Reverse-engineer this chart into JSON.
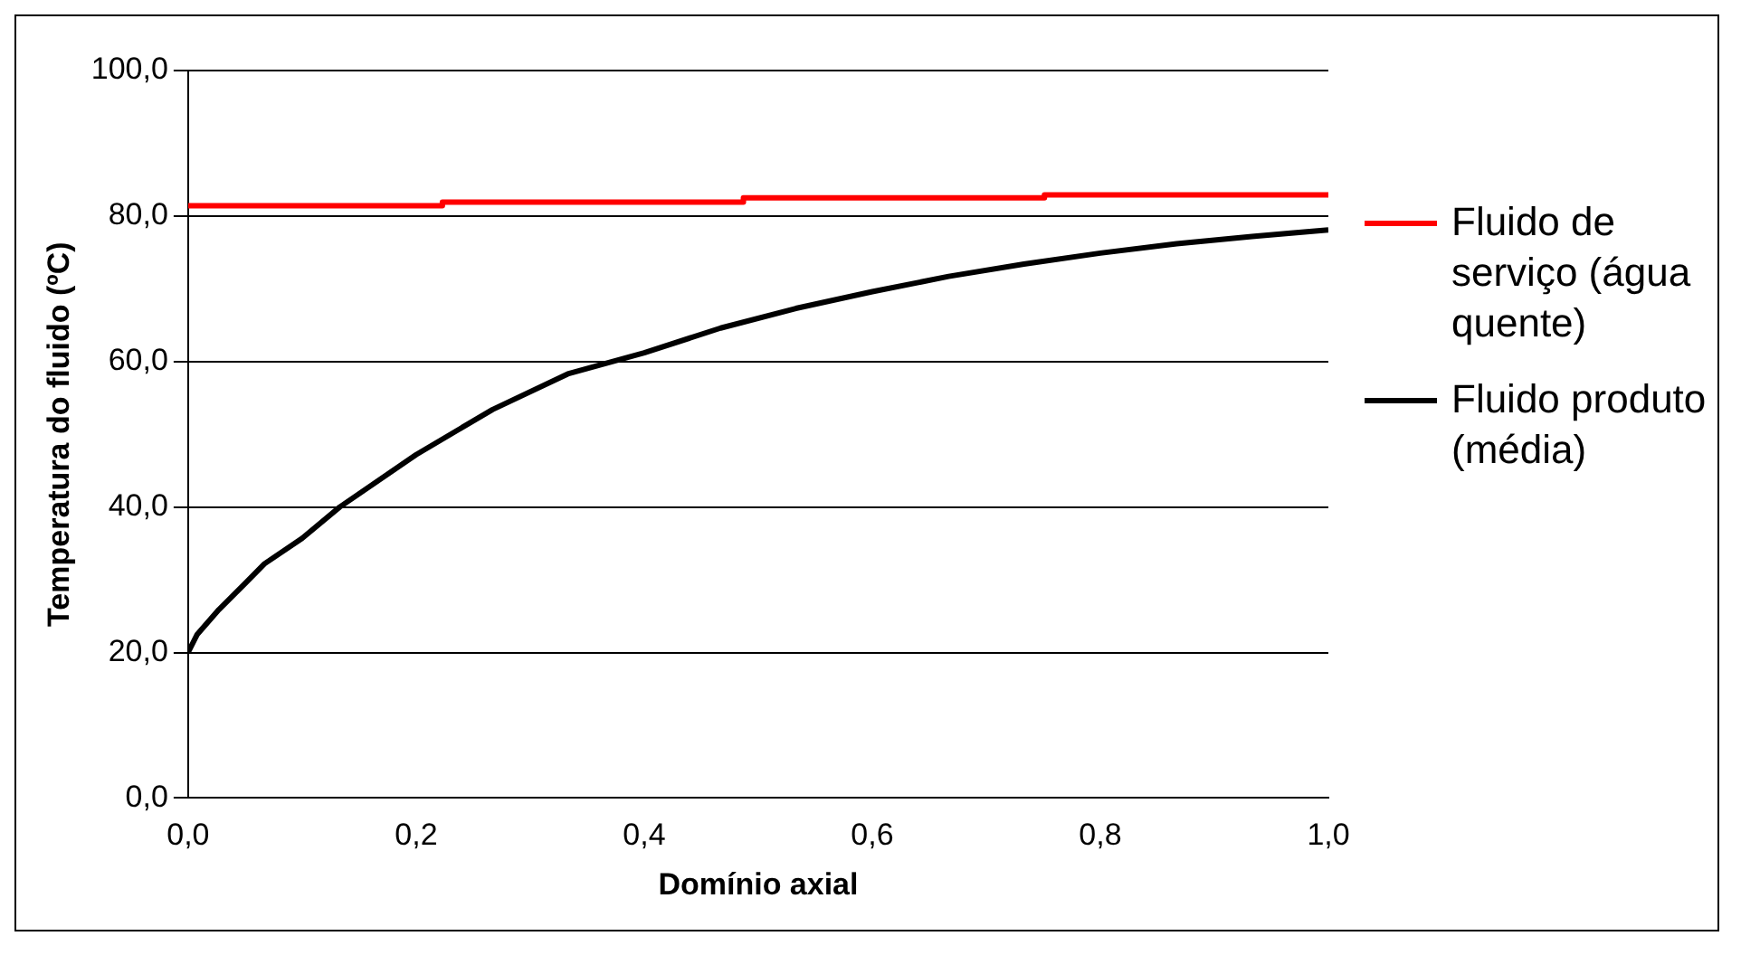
{
  "chart_data": {
    "type": "line",
    "xlabel": "Domínio axial",
    "ylabel": "Temperatura do fluido (ºC)",
    "xlim": [
      0,
      1
    ],
    "xticks": [
      {
        "value": 0,
        "label": "0,0"
      },
      {
        "value": 0.2,
        "label": "0,2"
      },
      {
        "value": 0.4,
        "label": "0,4"
      },
      {
        "value": 0.6,
        "label": "0,6"
      },
      {
        "value": 0.8,
        "label": "0,8"
      },
      {
        "value": 1,
        "label": "1,0"
      }
    ],
    "ylim": [
      0,
      100
    ],
    "yticks": [
      {
        "value": 0,
        "label": "0,0"
      },
      {
        "value": 20,
        "label": "20,0"
      },
      {
        "value": 40,
        "label": "40,0"
      },
      {
        "value": 60,
        "label": "60,0"
      },
      {
        "value": 80,
        "label": "80,0"
      },
      {
        "value": 100,
        "label": "100,0"
      }
    ],
    "grid": "y",
    "legend": "right",
    "marker": "none",
    "line_style": "solid",
    "series": [
      {
        "name": "Fluido de serviço (água quente)",
        "color": "#ff0000",
        "type": "step",
        "x": [
          0,
          0.223,
          0.487,
          0.751,
          1
        ],
        "values": [
          81.4,
          81.9,
          82.5,
          82.9,
          82.9
        ]
      },
      {
        "name": "Fluido produto (média)",
        "color": "#000000",
        "x": [
          0,
          0.008,
          0.027,
          0.05,
          0.067,
          0.1,
          0.133,
          0.2,
          0.267,
          0.333,
          0.4,
          0.467,
          0.533,
          0.6,
          0.667,
          0.733,
          0.8,
          0.867,
          0.933,
          1
        ],
        "values": [
          20,
          22.5,
          25.9,
          29.5,
          32.2,
          35.7,
          40,
          47.2,
          53.4,
          58.3,
          61.2,
          64.6,
          67.3,
          69.6,
          71.7,
          73.4,
          74.9,
          76.2,
          77.2,
          78.1
        ]
      }
    ]
  }
}
